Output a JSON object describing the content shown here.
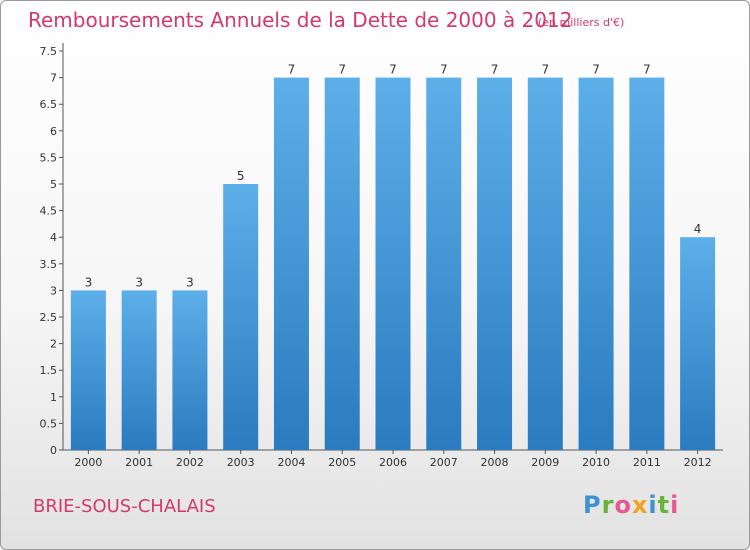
{
  "header": {
    "title": "Remboursements Annuels de la Dette de 2000 à 2012",
    "unit": "(en milliers d'€)"
  },
  "footer": {
    "commune": "BRIE-SOUS-CHALAIS",
    "brand": [
      "P",
      "r",
      "o",
      "x",
      "i",
      "t",
      "i"
    ]
  },
  "colors": {
    "bar_top": "#5dafe9",
    "bar_bottom": "#2a7bbf",
    "title": "#d2396c"
  },
  "chart_data": {
    "type": "bar",
    "title": "Remboursements Annuels de la Dette de 2000 à 2012",
    "xlabel": "",
    "ylabel": "",
    "categories": [
      "2000",
      "2001",
      "2002",
      "2003",
      "2004",
      "2005",
      "2006",
      "2007",
      "2008",
      "2009",
      "2010",
      "2011",
      "2012"
    ],
    "values": [
      3,
      3,
      3,
      5,
      7,
      7,
      7,
      7,
      7,
      7,
      7,
      7,
      4
    ],
    "data_labels": [
      "3",
      "3",
      "3",
      "5",
      "7",
      "7",
      "7",
      "7",
      "7",
      "7",
      "7",
      "7",
      "4"
    ],
    "ylim": [
      0,
      7.5
    ],
    "yticks": [
      "0",
      "0.5",
      "1",
      "1.5",
      "2",
      "2.5",
      "3",
      "3.5",
      "4",
      "4.5",
      "5",
      "5.5",
      "6",
      "6.5",
      "7",
      "7.5"
    ],
    "grid": false
  }
}
